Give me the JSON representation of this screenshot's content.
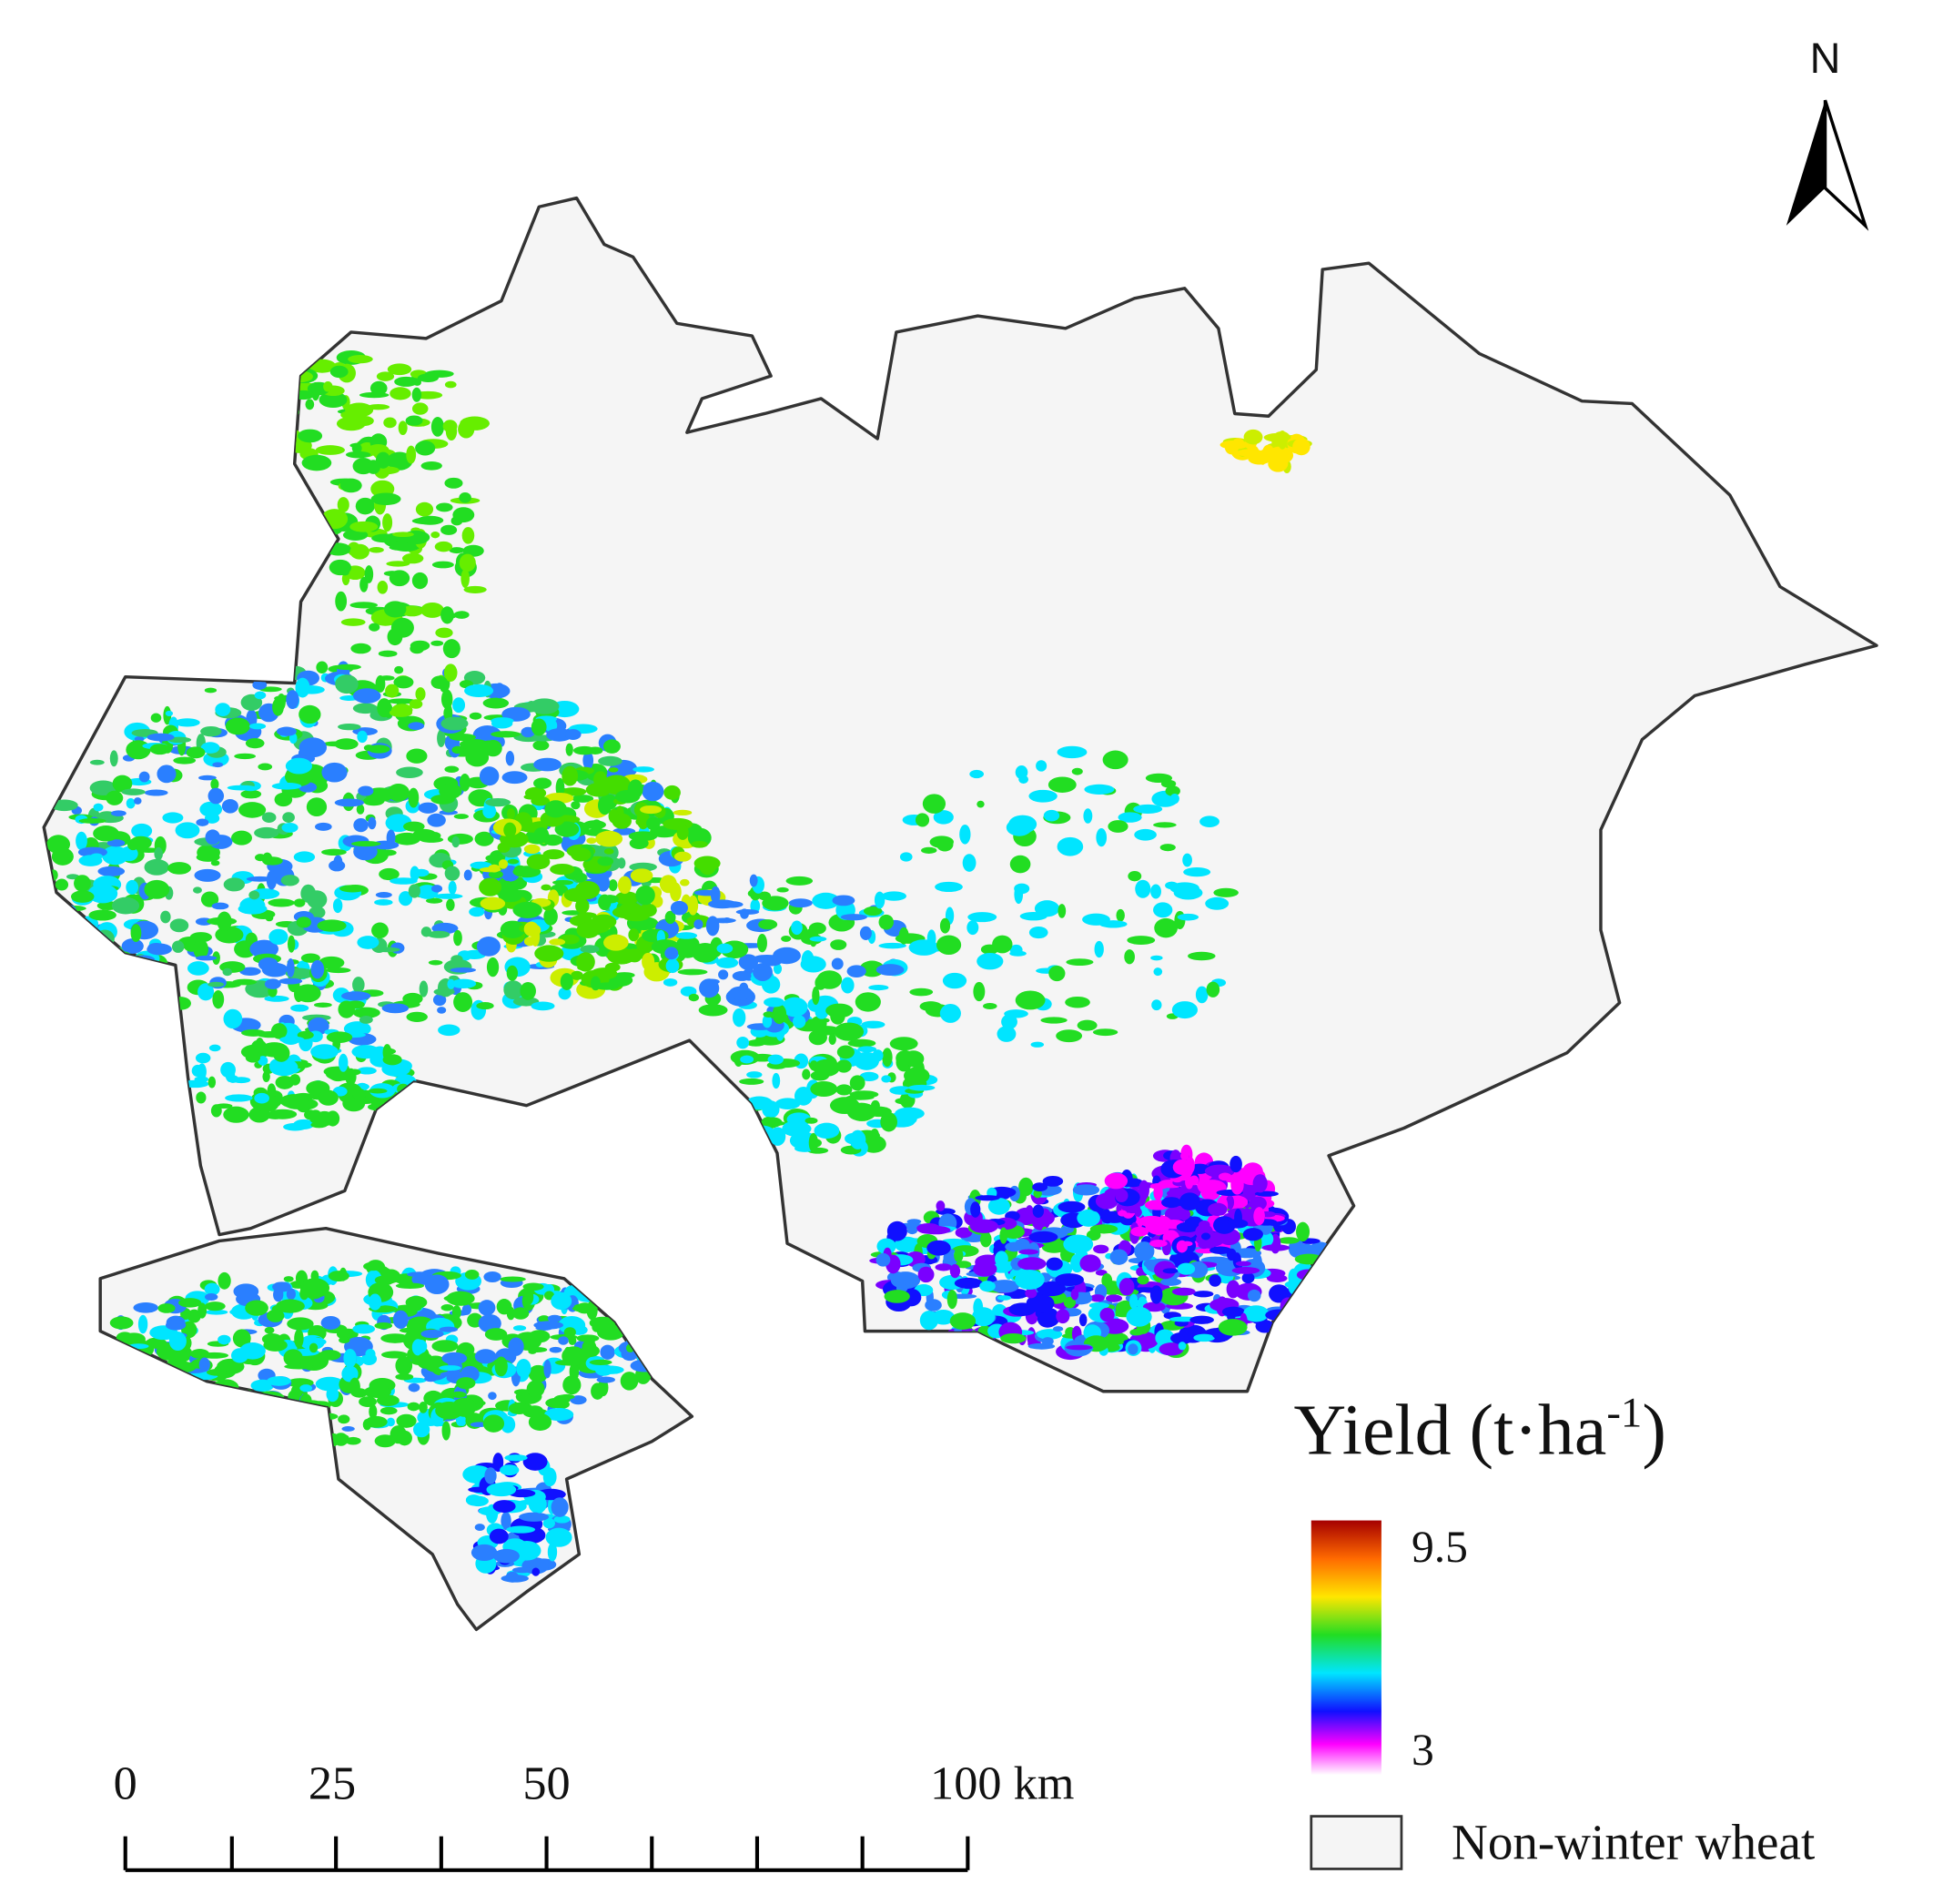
{
  "north_label": "N",
  "legend": {
    "title": "Yield (t·ha",
    "title_superscript": "-1",
    "title_end": ")",
    "max_label": "9.5",
    "min_label": "3",
    "nodata_label": "Non-winter wheat"
  },
  "scale_bar": {
    "labels": [
      "0",
      "25",
      "50",
      "100 km"
    ]
  }
}
